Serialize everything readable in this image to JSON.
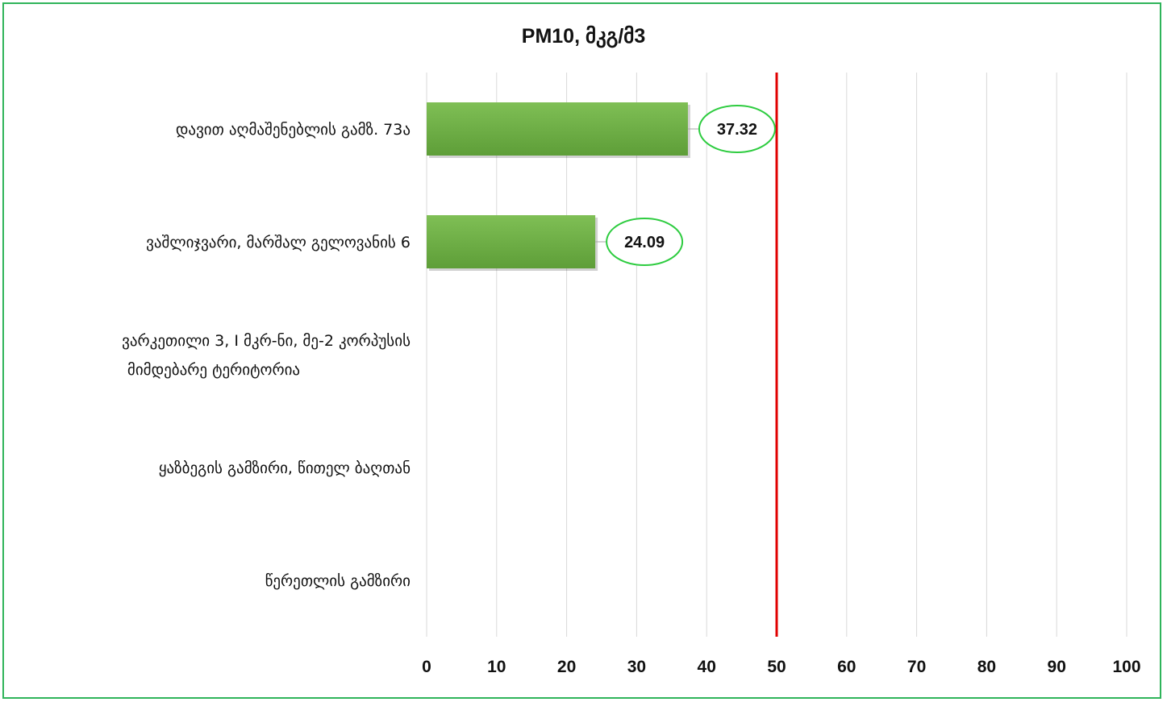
{
  "chart_data": {
    "type": "bar",
    "orientation": "horizontal",
    "title": "PM10, მკგ/მ3",
    "categories": [
      [
        "დავით აღმაშენებლის გამზ. 73ა"
      ],
      [
        "ვაშლიჯვარი, მარშალ გელოვანის 6"
      ],
      [
        "ვარკეთილი 3, I მკრ-ნი, მე-2 კორპუსის",
        "მიმდებარე ტერიტორია"
      ],
      [
        "ყაზბეგის გამზირი, წითელ ბაღთან"
      ],
      [
        "წერეთლის გამზირი"
      ]
    ],
    "values": [
      37.32,
      24.09,
      null,
      null,
      null
    ],
    "data_labels": [
      "37.32",
      "24.09",
      "",
      "",
      ""
    ],
    "xlim": [
      0,
      100
    ],
    "xticks": [
      "0",
      "10",
      "20",
      "30",
      "40",
      "50",
      "60",
      "70",
      "80",
      "90",
      "100"
    ],
    "reference_line": 50,
    "grid": true,
    "colors": {
      "bar": "#70ad47",
      "bar_dark": "#5b9a34",
      "reference_line": "#e00000",
      "label_border": "#2ecc40",
      "frame": "#2fb45a",
      "grid": "#d9d9d9"
    }
  }
}
